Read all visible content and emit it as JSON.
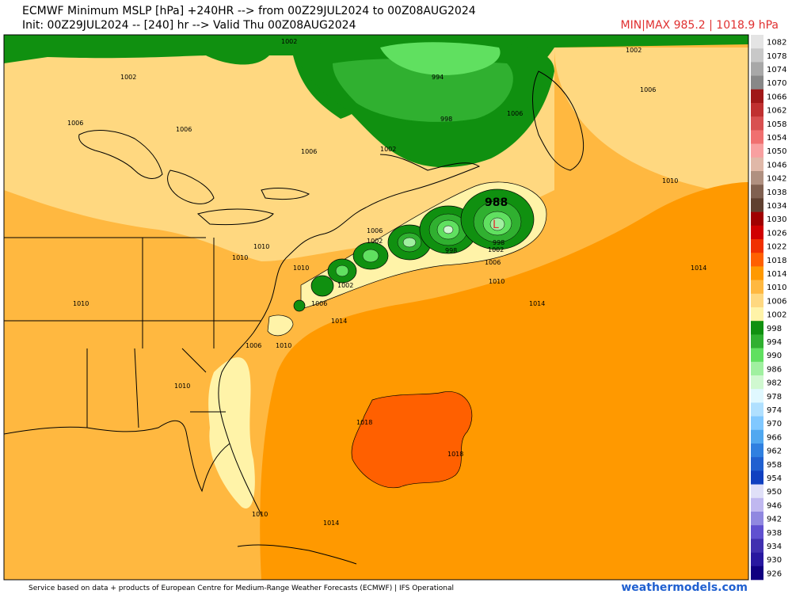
{
  "header": {
    "line1": "ECMWF Minimum MSLP [hPa] +240HR --> from 00Z29JUL2024 to 00Z08AUG2024",
    "line2": "Init: 00Z29JUL2024 -- [240] hr --> Valid Thu 00Z08AUG2024",
    "minmax": "MIN|MAX 985.2 | 1018.9 hPa"
  },
  "map": {
    "contour_labels": [
      "1002",
      "1002",
      "1006",
      "1006",
      "1006",
      "994",
      "998",
      "1002",
      "1002",
      "1006",
      "1010",
      "1006",
      "1002",
      "998",
      "998",
      "1002",
      "1006",
      "1010",
      "1014",
      "1014",
      "1010",
      "1010",
      "1006",
      "1010",
      "1014",
      "1010",
      "1010",
      "1018",
      "1018",
      "1014",
      "1010",
      "1006",
      "1002",
      "1010",
      "1006"
    ],
    "low_value": "988",
    "low_marker": "L"
  },
  "legend": [
    {
      "label": "1082",
      "color": "#e4e4e4"
    },
    {
      "label": "1078",
      "color": "#c8c8c8"
    },
    {
      "label": "1074",
      "color": "#a8a8a8"
    },
    {
      "label": "1070",
      "color": "#888888"
    },
    {
      "label": "1066",
      "color": "#a01818"
    },
    {
      "label": "1062",
      "color": "#c03030"
    },
    {
      "label": "1058",
      "color": "#d85050"
    },
    {
      "label": "1054",
      "color": "#f07070"
    },
    {
      "label": "1050",
      "color": "#f8a0a0"
    },
    {
      "label": "1046",
      "color": "#e0b8a8"
    },
    {
      "label": "1042",
      "color": "#b09080"
    },
    {
      "label": "1038",
      "color": "#806050"
    },
    {
      "label": "1034",
      "color": "#604030"
    },
    {
      "label": "1030",
      "color": "#a00000"
    },
    {
      "label": "1026",
      "color": "#d00000"
    },
    {
      "label": "1022",
      "color": "#f03000"
    },
    {
      "label": "1018",
      "color": "#ff6000"
    },
    {
      "label": "1014",
      "color": "#ff9900"
    },
    {
      "label": "1010",
      "color": "#ffb840"
    },
    {
      "label": "1006",
      "color": "#ffd880"
    },
    {
      "label": "1002",
      "color": "#fff3a8"
    },
    {
      "label": "998",
      "color": "#109010"
    },
    {
      "label": "994",
      "color": "#30b030"
    },
    {
      "label": "990",
      "color": "#60e060"
    },
    {
      "label": "986",
      "color": "#a0f0a0"
    },
    {
      "label": "982",
      "color": "#d0f8d0"
    },
    {
      "label": "978",
      "color": "#e0f8ff"
    },
    {
      "label": "974",
      "color": "#b0e0ff"
    },
    {
      "label": "970",
      "color": "#80c8ff"
    },
    {
      "label": "966",
      "color": "#50a8f0"
    },
    {
      "label": "962",
      "color": "#3080e0"
    },
    {
      "label": "958",
      "color": "#2060d0"
    },
    {
      "label": "954",
      "color": "#1040c0"
    },
    {
      "label": "950",
      "color": "#e0e0f8"
    },
    {
      "label": "946",
      "color": "#c0b8f0"
    },
    {
      "label": "942",
      "color": "#9088e0"
    },
    {
      "label": "938",
      "color": "#6050d0"
    },
    {
      "label": "934",
      "color": "#4030b0"
    },
    {
      "label": "930",
      "color": "#2818a0"
    },
    {
      "label": "926",
      "color": "#100080"
    }
  ],
  "footer": {
    "credit": "Service based on data + products of European Centre for Medium-Range Weather Forecasts (ECMWF) | IFS Operational",
    "site": "weathermodels.com"
  }
}
